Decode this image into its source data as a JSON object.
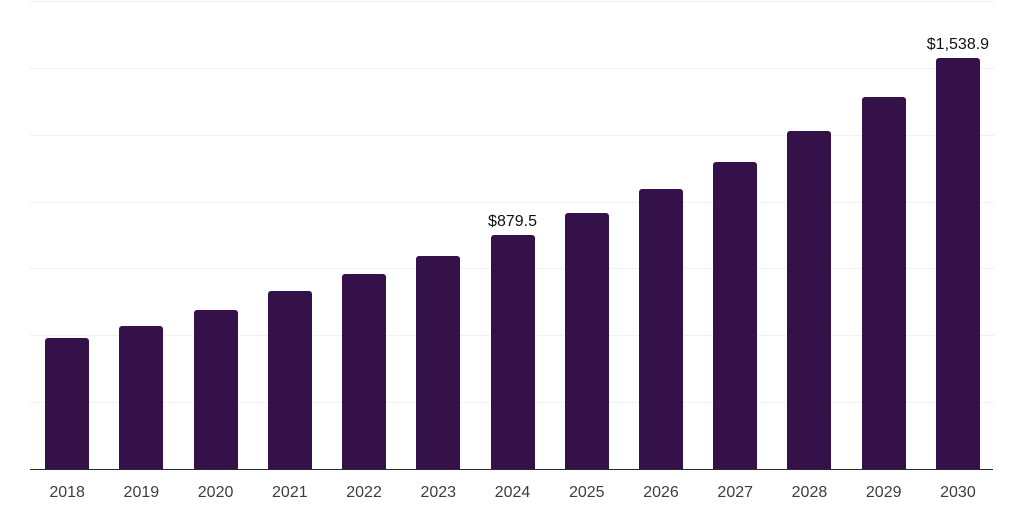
{
  "chart_data": {
    "type": "bar",
    "title": "",
    "xlabel": "",
    "ylabel": "",
    "categories": [
      "2018",
      "2019",
      "2020",
      "2021",
      "2022",
      "2023",
      "2024",
      "2025",
      "2026",
      "2027",
      "2028",
      "2029",
      "2030"
    ],
    "values": [
      495.0,
      537.0,
      597.0,
      670.0,
      734.0,
      802.0,
      879.5,
      961.0,
      1051.0,
      1150.0,
      1269.0,
      1396.0,
      1538.9
    ],
    "data_labels": {
      "2024": "$879.5",
      "2030": "$1,538.9"
    },
    "ylim": [
      0,
      1750
    ],
    "grid_step": 250,
    "grid": true,
    "legend": false,
    "y_tick_labels_visible": false,
    "colors": {
      "bar": "#35114A",
      "background": "#ffffff",
      "gridline": "#f1f1f4",
      "axis_line": "#2b2b2b",
      "x_tick_text": "#3d3d3d",
      "data_label_text": "#111111"
    }
  }
}
